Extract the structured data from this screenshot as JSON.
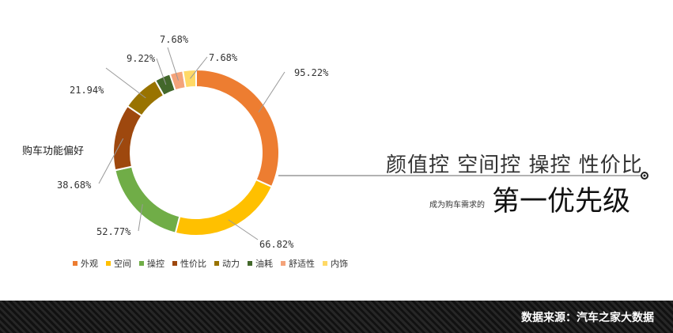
{
  "chart_data": {
    "type": "pie",
    "donut": true,
    "side_label": "购车功能偏好",
    "categories": [
      "外观",
      "空间",
      "操控",
      "性价比",
      "动力",
      "油耗",
      "舒适性",
      "内饰"
    ],
    "values": [
      95.22,
      66.82,
      52.77,
      38.68,
      21.94,
      9.22,
      7.68,
      7.68
    ],
    "value_labels": [
      "95.22%",
      "66.82%",
      "52.77%",
      "38.68%",
      "21.94%",
      "9.22%",
      "7.68%",
      "7.68%"
    ],
    "colors": [
      "#ED7D31",
      "#FFC000",
      "#70AD47",
      "#9E480E",
      "#997300",
      "#43682B",
      "#F4A37A",
      "#FFD966"
    ],
    "legend_position": "bottom"
  },
  "annotation": {
    "headline": "颜值控 空间控 操控 性价比",
    "sub_small": "成为购车需求的",
    "sub_big": "第一优先级"
  },
  "footer": {
    "source": "数据来源：汽车之家大数据"
  }
}
